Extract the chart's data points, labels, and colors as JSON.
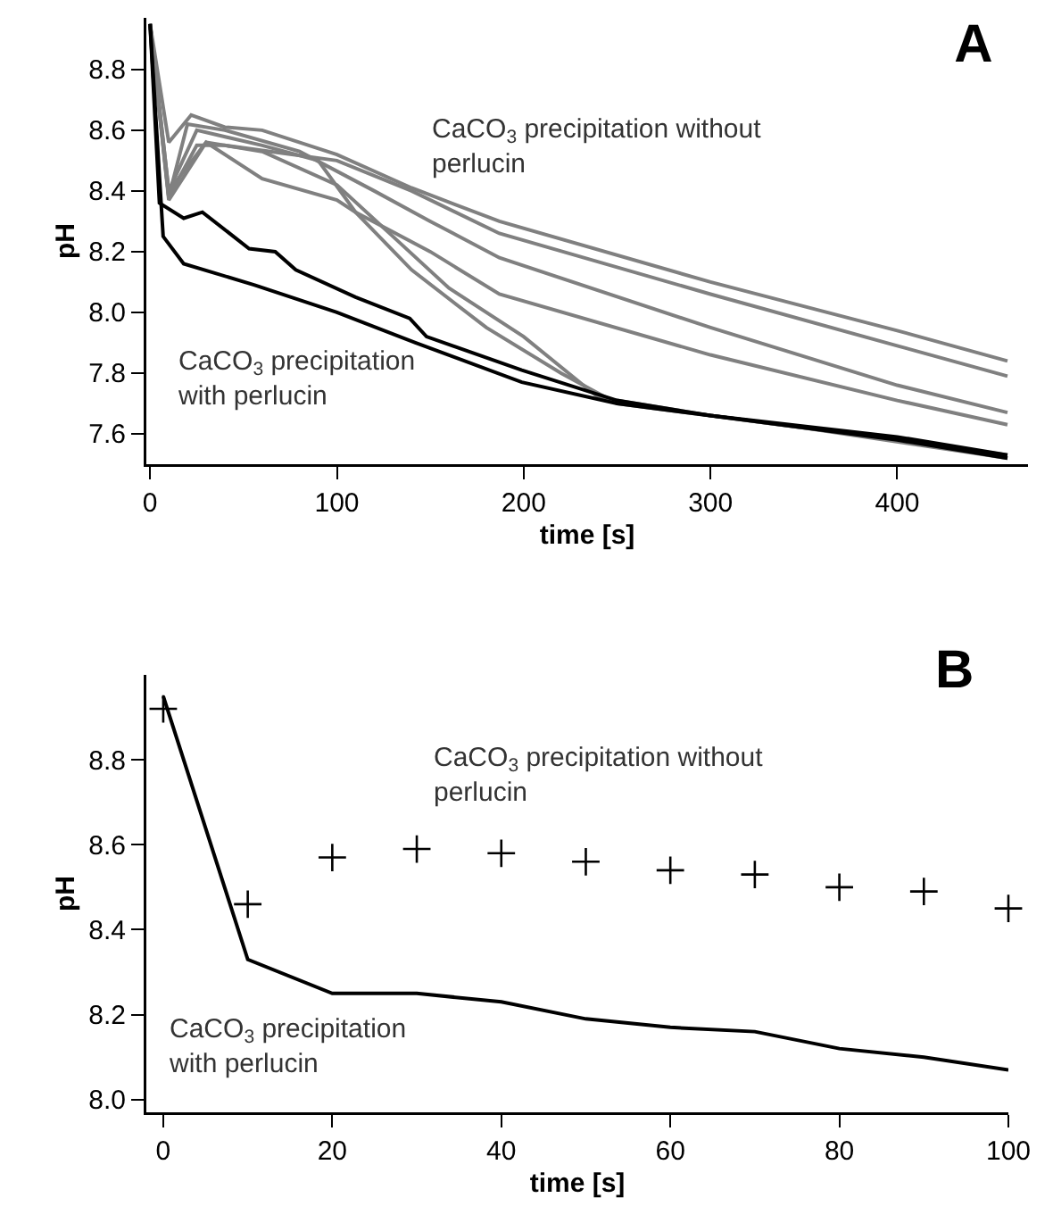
{
  "chart_data": [
    {
      "type": "line",
      "title": "A",
      "xlabel": "time [s]",
      "ylabel": "pH",
      "xlim": [
        -2,
        470
      ],
      "xticks": [
        0,
        100,
        200,
        300,
        400
      ],
      "ylim": [
        7.5,
        8.97
      ],
      "yticks": [
        {
          "value": 7.6,
          "label": "7.6"
        },
        {
          "value": 7.8,
          "label": "7.8"
        },
        {
          "value": 8.0,
          "label": "8.0"
        },
        {
          "value": 8.2,
          "label": "8.2"
        },
        {
          "value": 8.4,
          "label": "8.4"
        },
        {
          "value": 8.6,
          "label": "8.6"
        },
        {
          "value": 8.8,
          "label": "8.8"
        }
      ],
      "grid": false,
      "line_style": "solid",
      "annotations": [
        "CaCO$_{3}$ precipitation without\nperlucin",
        "CaCO$_{3}$ precipitation\nwith perlucin"
      ],
      "series": [
        {
          "color": "#808080",
          "x": [
            0,
            10,
            22,
            40,
            60,
            100,
            140,
            187,
            300,
            400,
            459
          ],
          "values": [
            8.95,
            8.56,
            8.65,
            8.61,
            8.6,
            8.52,
            8.41,
            8.3,
            8.1,
            7.94,
            7.84
          ]
        },
        {
          "color": "#808080",
          "x": [
            0,
            10,
            25,
            40,
            100,
            140,
            187,
            300,
            400,
            459
          ],
          "values": [
            8.95,
            8.38,
            8.55,
            8.55,
            8.5,
            8.4,
            8.26,
            8.06,
            7.89,
            7.79
          ]
        },
        {
          "color": "#808080",
          "x": [
            0,
            10,
            20,
            40,
            80,
            120,
            150,
            187,
            300,
            400,
            459
          ],
          "values": [
            8.95,
            8.38,
            8.62,
            8.6,
            8.53,
            8.4,
            8.3,
            8.18,
            7.95,
            7.76,
            7.67
          ]
        },
        {
          "color": "#808080",
          "x": [
            0,
            10,
            30,
            60,
            100,
            110,
            150,
            187,
            300,
            400,
            459
          ],
          "values": [
            8.95,
            8.4,
            8.56,
            8.44,
            8.37,
            8.33,
            8.2,
            8.06,
            7.86,
            7.71,
            7.63
          ]
        },
        {
          "color": "#808080",
          "x": [
            0,
            10,
            30,
            60,
            100,
            130,
            160,
            200,
            240,
            300,
            400,
            459
          ],
          "values": [
            8.95,
            8.37,
            8.56,
            8.53,
            8.42,
            8.25,
            8.08,
            7.92,
            7.72,
            7.66,
            7.58,
            7.53
          ]
        },
        {
          "color": "#808080",
          "x": [
            0,
            10,
            25,
            60,
            90,
            110,
            140,
            180,
            220,
            250,
            350,
            459
          ],
          "values": [
            8.95,
            8.4,
            8.6,
            8.55,
            8.5,
            8.33,
            8.14,
            7.95,
            7.8,
            7.7,
            7.62,
            7.52
          ]
        },
        {
          "color": "#000000",
          "x": [
            0,
            7,
            18,
            56,
            100,
            142,
            199,
            250,
            300,
            400,
            459
          ],
          "values": [
            8.95,
            8.25,
            8.16,
            8.09,
            8.0,
            7.9,
            7.77,
            7.7,
            7.66,
            7.58,
            7.52
          ]
        },
        {
          "color": "#000000",
          "x": [
            0,
            5,
            18,
            28,
            53,
            67,
            78,
            110,
            139,
            148,
            199,
            250,
            300,
            400,
            459
          ],
          "values": [
            8.95,
            8.36,
            8.31,
            8.33,
            8.21,
            8.2,
            8.14,
            8.05,
            7.98,
            7.92,
            7.81,
            7.71,
            7.66,
            7.59,
            7.53
          ]
        }
      ]
    },
    {
      "type": "scatter",
      "title": "B",
      "xlabel": "time [s]",
      "ylabel": "pH",
      "xlim": [
        -2,
        100
      ],
      "xticks": [
        0,
        20,
        40,
        60,
        80,
        100
      ],
      "ylim": [
        7.97,
        9.0
      ],
      "yticks": [
        {
          "value": 8.0,
          "label": "8.0"
        },
        {
          "value": 8.2,
          "label": "8.2"
        },
        {
          "value": 8.4,
          "label": "8.4"
        },
        {
          "value": 8.6,
          "label": "8.6"
        },
        {
          "value": 8.8,
          "label": "8.8"
        }
      ],
      "grid": false,
      "line_style": "solid",
      "annotations": [
        "CaCO$_{3}$ precipitation without\nperlucin",
        "CaCO$_{3}$ precipitation\nwith perlucin"
      ],
      "series": [
        {
          "marker": "cross",
          "color": "#000000",
          "x": [
            0,
            10,
            20,
            30,
            40,
            50,
            60,
            70,
            80,
            90,
            100
          ],
          "values": [
            8.92,
            8.46,
            8.57,
            8.59,
            8.58,
            8.56,
            8.54,
            8.53,
            8.5,
            8.49,
            8.45
          ]
        },
        {
          "type": "line",
          "color": "#000000",
          "x": [
            0,
            10,
            20,
            30,
            40,
            50,
            60,
            70,
            80,
            90,
            100
          ],
          "values": [
            8.95,
            8.33,
            8.25,
            8.25,
            8.23,
            8.19,
            8.17,
            8.16,
            8.12,
            8.1,
            8.07
          ]
        }
      ]
    }
  ]
}
